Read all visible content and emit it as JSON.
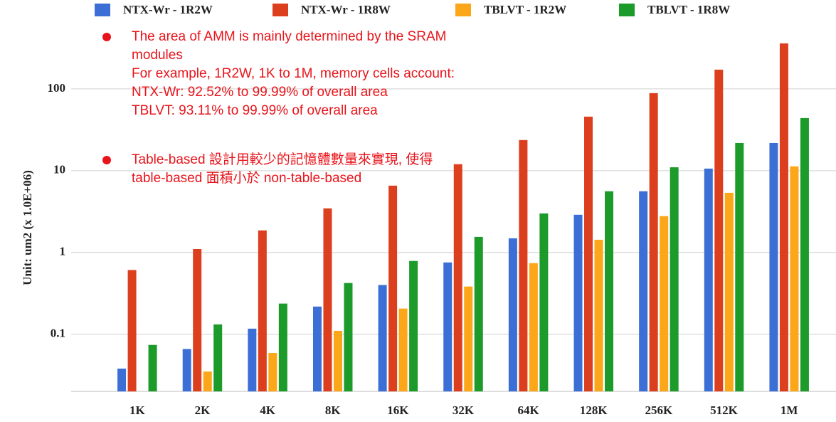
{
  "chart_data": {
    "type": "bar",
    "y_label": "Unit: um2 (x 1.0E+06)",
    "categories": [
      "1K",
      "2K",
      "4K",
      "8K",
      "16K",
      "32K",
      "64K",
      "128K",
      "256K",
      "512K",
      "1M"
    ],
    "series": [
      {
        "name": "NTX-Wr - 1R2W",
        "color": "#3b6fd6",
        "values": [
          0.038,
          0.066,
          0.117,
          0.218,
          0.4,
          0.755,
          1.49,
          2.89,
          5.6,
          10.6,
          21.8
        ]
      },
      {
        "name": "NTX-Wr - 1R8W",
        "color": "#dc3f1e",
        "values": [
          0.61,
          1.1,
          1.86,
          3.46,
          6.56,
          12,
          23.7,
          45.8,
          88.7,
          172,
          360
        ]
      },
      {
        "name": "TBLVT - 1R2W",
        "color": "#fca619",
        "values": [
          null,
          0.035,
          0.059,
          0.11,
          0.206,
          0.383,
          0.74,
          1.43,
          2.78,
          5.37,
          11.3
        ]
      },
      {
        "name": "TBLVT - 1R8W",
        "color": "#1c9a2a",
        "values": [
          0.074,
          0.132,
          0.237,
          0.423,
          0.787,
          1.55,
          3.0,
          5.6,
          11,
          21.8,
          44
        ]
      }
    ],
    "ylim": [
      0.02,
      1000
    ],
    "yticks": [
      0.1,
      1,
      10,
      100
    ],
    "log_scale": true,
    "grid": true,
    "annotations": [
      {
        "color": "#e8141b",
        "lines": [
          "The area of AMM is mainly determined by the SRAM",
          "modules",
          "For example, 1R2W, 1K to 1M, memory cells account:",
          "NTX-Wr: 92.52% to 99.99% of overall area",
          "TBLVT: 93.11% to 99.99% of overall area"
        ]
      },
      {
        "color": "#e8141b",
        "lines": [
          "Table-based 設計用較少的記憶體數量來實現, 使得",
          "table-based 面積小於 non-table-based"
        ]
      }
    ]
  }
}
